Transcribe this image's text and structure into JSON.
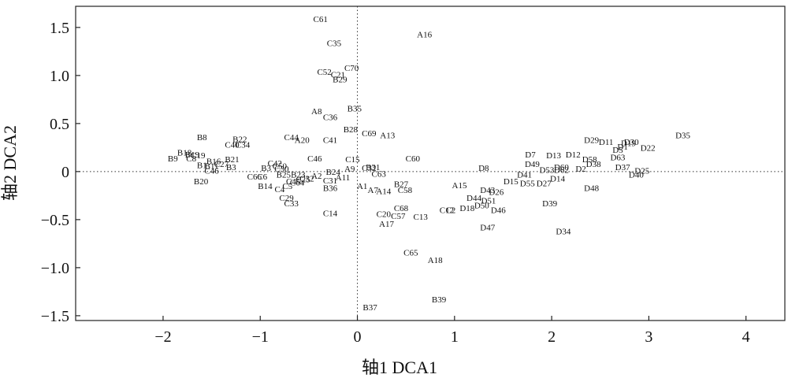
{
  "chart_data": {
    "type": "scatter",
    "xlabel": "轴1 DCA1",
    "ylabel": "轴2 DCA2",
    "xlim": [
      -2.9,
      4.4
    ],
    "ylim": [
      -1.55,
      1.72
    ],
    "xticks": [
      -2,
      -1,
      0,
      1,
      2,
      3,
      4
    ],
    "xtick_labels": [
      "−2",
      "−1",
      "0",
      "1",
      "2",
      "3",
      "4"
    ],
    "yticks": [
      -1.5,
      -1.0,
      -0.5,
      0,
      0.5,
      1.0,
      1.5
    ],
    "ytick_labels": [
      "−1.5",
      "−1.0",
      "−0.5",
      "0",
      "0.5",
      "1.0",
      "1.5"
    ],
    "reference_lines": {
      "x": 0,
      "y": 0,
      "style": "dotted"
    },
    "grid": false,
    "points": [
      {
        "label": "C61",
        "x": -0.38,
        "y": 1.59
      },
      {
        "label": "A16",
        "x": 0.69,
        "y": 1.43
      },
      {
        "label": "C35",
        "x": -0.24,
        "y": 1.34
      },
      {
        "label": "C70",
        "x": -0.06,
        "y": 1.08
      },
      {
        "label": "C52",
        "x": -0.34,
        "y": 1.04
      },
      {
        "label": "C21",
        "x": -0.2,
        "y": 1.01
      },
      {
        "label": "B29",
        "x": -0.18,
        "y": 0.96
      },
      {
        "label": "B35",
        "x": -0.03,
        "y": 0.66
      },
      {
        "label": "A8",
        "x": -0.42,
        "y": 0.63
      },
      {
        "label": "C36",
        "x": -0.28,
        "y": 0.57
      },
      {
        "label": "B28",
        "x": -0.07,
        "y": 0.44
      },
      {
        "label": "C69",
        "x": 0.12,
        "y": 0.4
      },
      {
        "label": "A13",
        "x": 0.31,
        "y": 0.38
      },
      {
        "label": "C44",
        "x": -0.68,
        "y": 0.36
      },
      {
        "label": "A20",
        "x": -0.57,
        "y": 0.33
      },
      {
        "label": "C41",
        "x": -0.28,
        "y": 0.33
      },
      {
        "label": "B8",
        "x": -1.6,
        "y": 0.36
      },
      {
        "label": "B22",
        "x": -1.21,
        "y": 0.34
      },
      {
        "label": "C40",
        "x": -1.29,
        "y": 0.28
      },
      {
        "label": "C34",
        "x": -1.18,
        "y": 0.28
      },
      {
        "label": "B18",
        "x": -1.78,
        "y": 0.2
      },
      {
        "label": "B19",
        "x": -1.7,
        "y": 0.18
      },
      {
        "label": "C19",
        "x": -1.64,
        "y": 0.17
      },
      {
        "label": "C8",
        "x": -1.71,
        "y": 0.14
      },
      {
        "label": "B9",
        "x": -1.9,
        "y": 0.14
      },
      {
        "label": "B21",
        "x": -1.29,
        "y": 0.13
      },
      {
        "label": "B16",
        "x": -1.48,
        "y": 0.11
      },
      {
        "label": "B1",
        "x": -1.6,
        "y": 0.07
      },
      {
        "label": "B11",
        "x": -1.5,
        "y": 0.06
      },
      {
        "label": "C27",
        "x": -1.4,
        "y": 0.08
      },
      {
        "label": "B3",
        "x": -1.3,
        "y": 0.05
      },
      {
        "label": "C46",
        "x": -1.5,
        "y": 0.01
      },
      {
        "label": "C46",
        "x": -0.44,
        "y": 0.14
      },
      {
        "label": "C15",
        "x": -0.05,
        "y": 0.13
      },
      {
        "label": "C60",
        "x": 0.57,
        "y": 0.14
      },
      {
        "label": "C42",
        "x": -0.85,
        "y": 0.09
      },
      {
        "label": "C50",
        "x": -0.8,
        "y": 0.06
      },
      {
        "label": "B3",
        "x": -0.94,
        "y": 0.04
      },
      {
        "label": "C30",
        "x": -0.78,
        "y": 0.03
      },
      {
        "label": "B31",
        "x": 0.16,
        "y": 0.05
      },
      {
        "label": "C32",
        "x": 0.12,
        "y": 0.04
      },
      {
        "label": "A9",
        "x": -0.08,
        "y": 0.03
      },
      {
        "label": "B24",
        "x": -0.25,
        "y": 0.0
      },
      {
        "label": "B25",
        "x": -0.76,
        "y": -0.03
      },
      {
        "label": "B23",
        "x": -0.61,
        "y": -0.03
      },
      {
        "label": "A2",
        "x": -0.42,
        "y": -0.04
      },
      {
        "label": "C63",
        "x": 0.22,
        "y": -0.02
      },
      {
        "label": "C66",
        "x": -1.06,
        "y": -0.05
      },
      {
        "label": "C6",
        "x": -0.98,
        "y": -0.05
      },
      {
        "label": "C32",
        "x": -0.52,
        "y": -0.07
      },
      {
        "label": "C25",
        "x": -0.56,
        "y": -0.08
      },
      {
        "label": "A11",
        "x": -0.15,
        "y": -0.06
      },
      {
        "label": "C31",
        "x": -0.28,
        "y": -0.09
      },
      {
        "label": "C45",
        "x": -0.66,
        "y": -0.1
      },
      {
        "label": "C64",
        "x": -0.62,
        "y": -0.11
      },
      {
        "label": "B20",
        "x": -1.61,
        "y": -0.1
      },
      {
        "label": "B14",
        "x": -0.95,
        "y": -0.15
      },
      {
        "label": "C5",
        "x": -0.72,
        "y": -0.15
      },
      {
        "label": "C4",
        "x": -0.8,
        "y": -0.18
      },
      {
        "label": "B36",
        "x": -0.28,
        "y": -0.17
      },
      {
        "label": "B27",
        "x": 0.45,
        "y": -0.13
      },
      {
        "label": "A1",
        "x": 0.05,
        "y": -0.15
      },
      {
        "label": "A15",
        "x": 1.05,
        "y": -0.14
      },
      {
        "label": "C58",
        "x": 0.49,
        "y": -0.19
      },
      {
        "label": "A14",
        "x": 0.27,
        "y": -0.2
      },
      {
        "label": "A7",
        "x": 0.16,
        "y": -0.19
      },
      {
        "label": "C29",
        "x": -0.73,
        "y": -0.27
      },
      {
        "label": "C33",
        "x": -0.68,
        "y": -0.33
      },
      {
        "label": "C14",
        "x": -0.28,
        "y": -0.43
      },
      {
        "label": "C20",
        "x": 0.27,
        "y": -0.44
      },
      {
        "label": "C57",
        "x": 0.42,
        "y": -0.46
      },
      {
        "label": "C13",
        "x": 0.65,
        "y": -0.47
      },
      {
        "label": "C68",
        "x": 0.45,
        "y": -0.38
      },
      {
        "label": "A17",
        "x": 0.3,
        "y": -0.54
      },
      {
        "label": "C12",
        "x": 0.92,
        "y": -0.4
      },
      {
        "label": "C2",
        "x": 0.96,
        "y": -0.4
      },
      {
        "label": "D8",
        "x": 1.3,
        "y": 0.04
      },
      {
        "label": "D7",
        "x": 1.78,
        "y": 0.18
      },
      {
        "label": "D49",
        "x": 1.8,
        "y": 0.08
      },
      {
        "label": "D13",
        "x": 2.02,
        "y": 0.17
      },
      {
        "label": "D12",
        "x": 2.22,
        "y": 0.18
      },
      {
        "label": "D29",
        "x": 2.41,
        "y": 0.33
      },
      {
        "label": "D11",
        "x": 2.56,
        "y": 0.31
      },
      {
        "label": "D30",
        "x": 2.82,
        "y": 0.31
      },
      {
        "label": "D19",
        "x": 2.79,
        "y": 0.3
      },
      {
        "label": "D1",
        "x": 2.73,
        "y": 0.26
      },
      {
        "label": "D5",
        "x": 2.68,
        "y": 0.23
      },
      {
        "label": "D22",
        "x": 2.99,
        "y": 0.25
      },
      {
        "label": "D35",
        "x": 3.35,
        "y": 0.38
      },
      {
        "label": "D58",
        "x": 2.39,
        "y": 0.13
      },
      {
        "label": "D63",
        "x": 2.68,
        "y": 0.15
      },
      {
        "label": "D38",
        "x": 2.43,
        "y": 0.08
      },
      {
        "label": "D37",
        "x": 2.73,
        "y": 0.05
      },
      {
        "label": "D25",
        "x": 2.93,
        "y": 0.01
      },
      {
        "label": "D40",
        "x": 2.87,
        "y": -0.03
      },
      {
        "label": "D2",
        "x": 2.3,
        "y": 0.03
      },
      {
        "label": "D60",
        "x": 2.1,
        "y": 0.05
      },
      {
        "label": "D62",
        "x": 2.1,
        "y": 0.02
      },
      {
        "label": "D53",
        "x": 1.95,
        "y": 0.02
      },
      {
        "label": "D41",
        "x": 1.72,
        "y": -0.03
      },
      {
        "label": "D14",
        "x": 2.06,
        "y": -0.07
      },
      {
        "label": "D27",
        "x": 1.92,
        "y": -0.12
      },
      {
        "label": "D15",
        "x": 1.58,
        "y": -0.1
      },
      {
        "label": "D55",
        "x": 1.75,
        "y": -0.12
      },
      {
        "label": "D48",
        "x": 2.41,
        "y": -0.17
      },
      {
        "label": "D43",
        "x": 1.34,
        "y": -0.19
      },
      {
        "label": "D26",
        "x": 1.43,
        "y": -0.21
      },
      {
        "label": "D44",
        "x": 1.2,
        "y": -0.27
      },
      {
        "label": "D51",
        "x": 1.35,
        "y": -0.3
      },
      {
        "label": "D50",
        "x": 1.28,
        "y": -0.35
      },
      {
        "label": "D46",
        "x": 1.45,
        "y": -0.4
      },
      {
        "label": "D18",
        "x": 1.13,
        "y": -0.38
      },
      {
        "label": "D39",
        "x": 1.98,
        "y": -0.33
      },
      {
        "label": "D47",
        "x": 1.34,
        "y": -0.58
      },
      {
        "label": "D34",
        "x": 2.12,
        "y": -0.62
      },
      {
        "label": "C65",
        "x": 0.55,
        "y": -0.84
      },
      {
        "label": "A18",
        "x": 0.8,
        "y": -0.92
      },
      {
        "label": "B39",
        "x": 0.84,
        "y": -1.33
      },
      {
        "label": "B37",
        "x": 0.13,
        "y": -1.41
      }
    ]
  }
}
